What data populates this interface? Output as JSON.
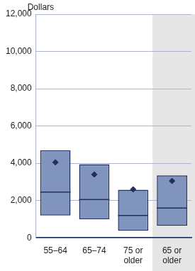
{
  "chart_data": {
    "type": "box",
    "y_label": "Dollars",
    "categories": [
      "55–64",
      "65–74",
      "75 or older",
      "65 or older"
    ],
    "q1": [
      1200,
      1000,
      380,
      650
    ],
    "median": [
      2450,
      2050,
      1200,
      1600
    ],
    "q3": [
      4700,
      3950,
      2580,
      3350
    ],
    "mean": [
      4050,
      3400,
      2600,
      3050
    ],
    "color": "#8194be",
    "ylim": [
      0,
      12000
    ],
    "yticks": [
      0,
      {
        "value": 2000,
        "label": "2,000"
      },
      {
        "value": 4000,
        "label": "4,000"
      },
      {
        "value": 6000,
        "label": "6,000"
      },
      {
        "value": 8000,
        "label": "8,000"
      },
      {
        "value": 10000,
        "label": "10,000"
      },
      {
        "value": 12000,
        "label": "12,000"
      }
    ],
    "grid": true
  }
}
